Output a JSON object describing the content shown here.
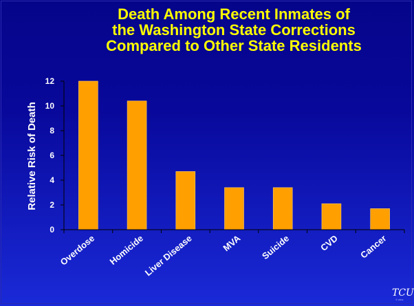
{
  "title_lines": [
    "Death Among Recent Inmates  of",
    "the Washington State Corrections",
    "Compared to Other State Residents"
  ],
  "colors": {
    "bar": "#ff9f00",
    "bar_edge": "#ffcc66",
    "text": "#ffffff",
    "title": "#ffff00",
    "axis": "#000000"
  },
  "logo": {
    "text": "TCU",
    "small": "© 2014"
  },
  "chart_data": {
    "type": "bar",
    "title": "Death Among Recent Inmates  of the Washington State Corrections Compared to Other State Residents",
    "xlabel": "",
    "ylabel": "Relative Risk of Death",
    "categories": [
      "Overdose",
      "Homicide",
      "Liver Disease",
      "MVA",
      "Suicide",
      "CVD",
      "Cancer"
    ],
    "values": [
      12.0,
      10.4,
      4.7,
      3.4,
      3.4,
      2.1,
      1.7
    ],
    "ylim": [
      0,
      12
    ],
    "yticks": [
      "0",
      "2",
      "4",
      "6",
      "8",
      "10",
      "12"
    ],
    "grid": false,
    "legend": "none"
  }
}
